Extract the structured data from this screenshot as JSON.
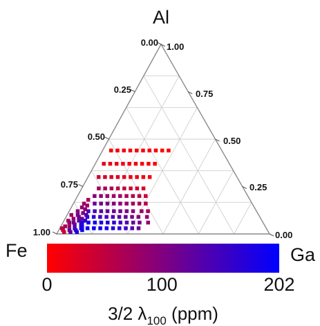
{
  "chart_data": {
    "type": "scatter",
    "subtype": "ternary",
    "vertices": {
      "top": "Al",
      "left": "Fe",
      "right": "Ga"
    },
    "left_edge_ticks": [
      "0.00",
      "0.25",
      "0.50",
      "0.75",
      "1.00"
    ],
    "right_edge_ticks": [
      "1.00",
      "0.75",
      "0.50",
      "0.25",
      "0.00"
    ],
    "grid": true,
    "marker": "square",
    "colorbar": {
      "title_prefix": "3/2 λ",
      "title_subscript": "100",
      "title_suffix": " (ppm)",
      "min": 0,
      "max": 202,
      "ticks": [
        {
          "value": 0,
          "label": "0"
        },
        {
          "value": 100,
          "label": "100"
        },
        {
          "value": 202,
          "label": "202"
        }
      ],
      "colors": [
        "#ff0000",
        "#0000ff"
      ]
    },
    "point_fields": [
      "Al",
      "Ga",
      "lambda_ppm"
    ],
    "points": [
      [
        0.03,
        0.1,
        201
      ],
      [
        0.03,
        0.13,
        198
      ],
      [
        0.03,
        0.16,
        194
      ],
      [
        0.03,
        0.19,
        190
      ],
      [
        0.03,
        0.22,
        184
      ],
      [
        0.03,
        0.25,
        176
      ],
      [
        0.03,
        0.28,
        166
      ],
      [
        0.03,
        0.31,
        152
      ],
      [
        0.03,
        0.34,
        136
      ],
      [
        0.03,
        0.37,
        118
      ],
      [
        0.06,
        0.09,
        196
      ],
      [
        0.06,
        0.12,
        192
      ],
      [
        0.06,
        0.15,
        188
      ],
      [
        0.06,
        0.18,
        182
      ],
      [
        0.06,
        0.21,
        174
      ],
      [
        0.06,
        0.24,
        166
      ],
      [
        0.06,
        0.27,
        154
      ],
      [
        0.06,
        0.3,
        140
      ],
      [
        0.06,
        0.33,
        124
      ],
      [
        0.06,
        0.36,
        106
      ],
      [
        0.06,
        0.4,
        88
      ],
      [
        0.09,
        0.1,
        170
      ],
      [
        0.09,
        0.13,
        164
      ],
      [
        0.09,
        0.16,
        156
      ],
      [
        0.09,
        0.19,
        148
      ],
      [
        0.09,
        0.22,
        140
      ],
      [
        0.09,
        0.25,
        130
      ],
      [
        0.09,
        0.28,
        118
      ],
      [
        0.09,
        0.31,
        106
      ],
      [
        0.09,
        0.34,
        94
      ],
      [
        0.09,
        0.38,
        80
      ],
      [
        0.12,
        0.09,
        150
      ],
      [
        0.12,
        0.12,
        142
      ],
      [
        0.12,
        0.15,
        134
      ],
      [
        0.12,
        0.18,
        126
      ],
      [
        0.12,
        0.21,
        118
      ],
      [
        0.12,
        0.24,
        110
      ],
      [
        0.12,
        0.27,
        100
      ],
      [
        0.12,
        0.3,
        90
      ],
      [
        0.12,
        0.34,
        78
      ],
      [
        0.12,
        0.37,
        66
      ],
      [
        0.16,
        0.1,
        124
      ],
      [
        0.16,
        0.13,
        116
      ],
      [
        0.16,
        0.16,
        108
      ],
      [
        0.16,
        0.19,
        100
      ],
      [
        0.16,
        0.22,
        92
      ],
      [
        0.16,
        0.25,
        84
      ],
      [
        0.16,
        0.28,
        76
      ],
      [
        0.16,
        0.31,
        68
      ],
      [
        0.16,
        0.34,
        58
      ],
      [
        0.2,
        0.08,
        96
      ],
      [
        0.2,
        0.11,
        90
      ],
      [
        0.2,
        0.14,
        84
      ],
      [
        0.2,
        0.17,
        78
      ],
      [
        0.2,
        0.2,
        72
      ],
      [
        0.2,
        0.23,
        66
      ],
      [
        0.2,
        0.26,
        60
      ],
      [
        0.2,
        0.29,
        52
      ],
      [
        0.2,
        0.32,
        44
      ],
      [
        0.24,
        0.08,
        72
      ],
      [
        0.24,
        0.11,
        66
      ],
      [
        0.24,
        0.14,
        60
      ],
      [
        0.24,
        0.17,
        54
      ],
      [
        0.24,
        0.2,
        48
      ],
      [
        0.24,
        0.23,
        42
      ],
      [
        0.24,
        0.26,
        36
      ],
      [
        0.24,
        0.29,
        30
      ],
      [
        0.3,
        0.05,
        40
      ],
      [
        0.3,
        0.08,
        36
      ],
      [
        0.3,
        0.11,
        32
      ],
      [
        0.3,
        0.14,
        28
      ],
      [
        0.3,
        0.17,
        24
      ],
      [
        0.3,
        0.2,
        20
      ],
      [
        0.3,
        0.23,
        16
      ],
      [
        0.3,
        0.26,
        12
      ],
      [
        0.3,
        0.29,
        8
      ],
      [
        0.37,
        0.04,
        22
      ],
      [
        0.37,
        0.07,
        19
      ],
      [
        0.37,
        0.1,
        16
      ],
      [
        0.37,
        0.13,
        13
      ],
      [
        0.37,
        0.16,
        10
      ],
      [
        0.37,
        0.19,
        8
      ],
      [
        0.37,
        0.22,
        6
      ],
      [
        0.37,
        0.25,
        4
      ],
      [
        0.37,
        0.28,
        2
      ],
      [
        0.44,
        0.04,
        12
      ],
      [
        0.44,
        0.07,
        10
      ],
      [
        0.44,
        0.1,
        8
      ],
      [
        0.44,
        0.13,
        6
      ],
      [
        0.44,
        0.16,
        5
      ],
      [
        0.44,
        0.19,
        4
      ],
      [
        0.44,
        0.22,
        3
      ],
      [
        0.44,
        0.25,
        2
      ],
      [
        0.44,
        0.28,
        1
      ],
      [
        0.44,
        0.31,
        0
      ],
      [
        0.02,
        0.02,
        60
      ],
      [
        0.04,
        0.04,
        80
      ],
      [
        0.06,
        0.03,
        100
      ],
      [
        0.02,
        0.05,
        120
      ],
      [
        0.05,
        0.06,
        140
      ],
      [
        0.08,
        0.04,
        90
      ],
      [
        0.1,
        0.05,
        110
      ],
      [
        0.03,
        0.07,
        150
      ],
      [
        0.07,
        0.07,
        130
      ],
      [
        0.01,
        0.03,
        40
      ],
      [
        0.04,
        0.02,
        70
      ],
      [
        0.12,
        0.04,
        95
      ],
      [
        0.14,
        0.05,
        85
      ],
      [
        0.09,
        0.06,
        115
      ],
      [
        0.06,
        0.05,
        105
      ],
      [
        0.02,
        0.08,
        160
      ],
      [
        0.05,
        0.09,
        170
      ],
      [
        0.08,
        0.08,
        120
      ],
      [
        0.11,
        0.07,
        100
      ],
      [
        0.13,
        0.07,
        90
      ],
      [
        0.01,
        0.06,
        130
      ],
      [
        0.03,
        0.01,
        50
      ],
      [
        0.07,
        0.02,
        65
      ],
      [
        0.1,
        0.02,
        75
      ],
      [
        0.16,
        0.05,
        80
      ],
      [
        0.18,
        0.06,
        70
      ],
      [
        0.15,
        0.07,
        78
      ],
      [
        0.04,
        0.1,
        175
      ],
      [
        0.07,
        0.1,
        160
      ],
      [
        0.1,
        0.09,
        140
      ],
      [
        0.02,
        0.11,
        185
      ],
      [
        0.01,
        0.09,
        178
      ]
    ]
  }
}
